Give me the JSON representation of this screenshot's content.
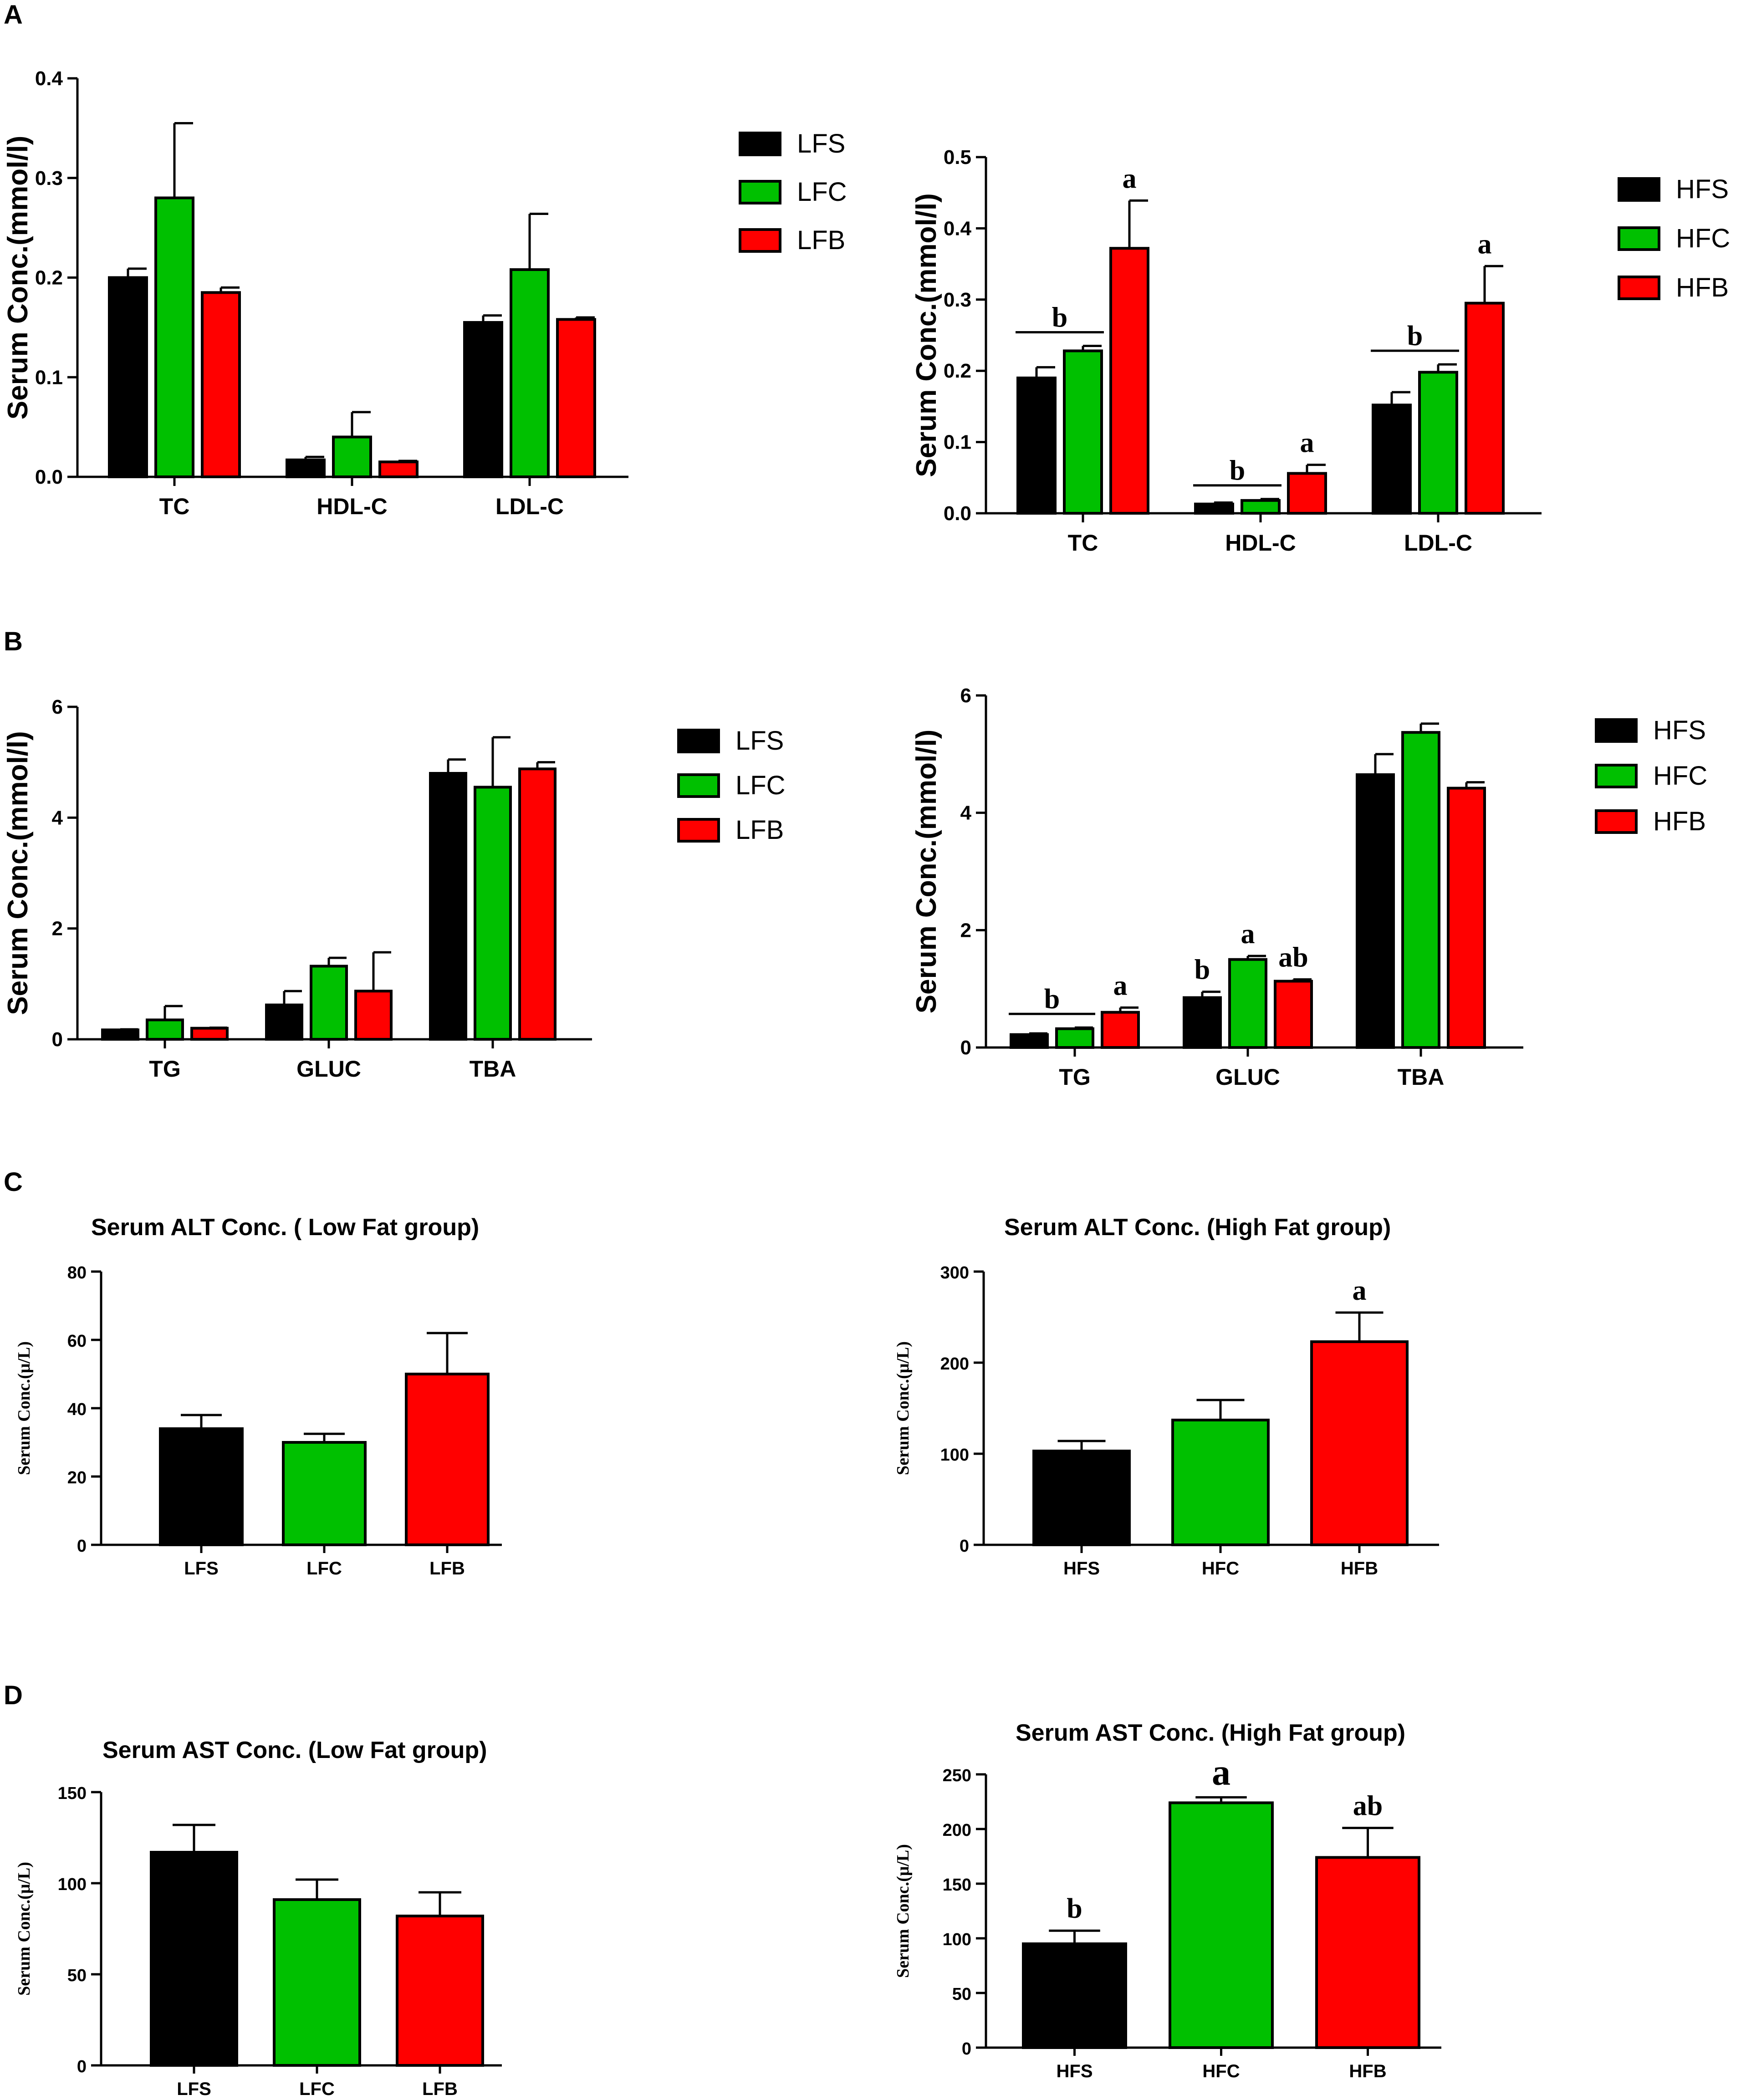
{
  "colors": {
    "black": "#000000",
    "green": "#00c000",
    "red": "#ff0000"
  },
  "panel_labels": [
    "A",
    "B",
    "C",
    "D"
  ],
  "chart_data": [
    {
      "id": "A-left",
      "panel": "A",
      "type": "bar",
      "title": "",
      "ylabel": "Serum  Conc.(mmol/l)",
      "xlabel": "",
      "ylim": [
        0,
        0.4
      ],
      "yticks": [
        "0.0",
        "0.1",
        "0.2",
        "0.3",
        "0.4"
      ],
      "categories": [
        "TC",
        "HDL-C",
        "LDL-C"
      ],
      "series": [
        {
          "name": "LFS",
          "color": "#000000",
          "values": [
            0.2,
            0.017,
            0.155
          ],
          "errors": [
            0.009,
            0.003,
            0.007
          ]
        },
        {
          "name": "LFC",
          "color": "#00c000",
          "values": [
            0.28,
            0.04,
            0.208
          ],
          "errors": [
            0.075,
            0.025,
            0.056
          ]
        },
        {
          "name": "LFB",
          "color": "#ff0000",
          "values": [
            0.185,
            0.015,
            0.158
          ],
          "errors": [
            0.005,
            0.001,
            0.002
          ]
        }
      ],
      "letters": [],
      "legend": [
        "LFS",
        "LFC",
        "LFB"
      ],
      "legend_position": "right"
    },
    {
      "id": "A-right",
      "panel": "A",
      "type": "bar",
      "title": "",
      "ylabel": "Serum  Conc.(mmol/l)",
      "xlabel": "",
      "ylim": [
        0,
        0.5
      ],
      "yticks": [
        "0.0",
        "0.1",
        "0.2",
        "0.3",
        "0.4",
        "0.5"
      ],
      "categories": [
        "TC",
        "HDL-C",
        "LDL-C"
      ],
      "series": [
        {
          "name": "HFS",
          "color": "#000000",
          "values": [
            0.19,
            0.013,
            0.152
          ],
          "errors": [
            0.015,
            0.002,
            0.018
          ]
        },
        {
          "name": "HFC",
          "color": "#00c000",
          "values": [
            0.228,
            0.018,
            0.198
          ],
          "errors": [
            0.007,
            0.002,
            0.011
          ]
        },
        {
          "name": "HFB",
          "color": "#ff0000",
          "values": [
            0.372,
            0.056,
            0.295
          ],
          "errors": [
            0.067,
            0.012,
            0.052
          ]
        }
      ],
      "letters": [
        {
          "text": "b",
          "category": 0,
          "span": [
            0,
            1
          ],
          "line": true
        },
        {
          "text": "a",
          "category": 0,
          "bar": 2
        },
        {
          "text": "b",
          "category": 1,
          "span": [
            0,
            1
          ],
          "line": true
        },
        {
          "text": "a",
          "category": 1,
          "bar": 2
        },
        {
          "text": "b",
          "category": 2,
          "span": [
            0,
            1
          ],
          "line": true
        },
        {
          "text": "a",
          "category": 2,
          "bar": 2
        }
      ],
      "legend": [
        "HFS",
        "HFC",
        "HFB"
      ],
      "legend_position": "right"
    },
    {
      "id": "B-left",
      "panel": "B",
      "type": "bar",
      "title": "",
      "ylabel": "Serum  Conc.(mmol/l)",
      "xlabel": "",
      "ylim": [
        0,
        6
      ],
      "yticks": [
        "0",
        "2",
        "4",
        "6"
      ],
      "categories": [
        "TG",
        "GLUC",
        "TBA"
      ],
      "series": [
        {
          "name": "LFS",
          "color": "#000000",
          "values": [
            0.17,
            0.62,
            4.8
          ],
          "errors": [
            0.01,
            0.25,
            0.25
          ]
        },
        {
          "name": "LFC",
          "color": "#00c000",
          "values": [
            0.35,
            1.32,
            4.55
          ],
          "errors": [
            0.25,
            0.15,
            0.9
          ]
        },
        {
          "name": "LFB",
          "color": "#ff0000",
          "values": [
            0.2,
            0.87,
            4.88
          ],
          "errors": [
            0.01,
            0.7,
            0.12
          ]
        }
      ],
      "letters": [],
      "legend": [
        "LFS",
        "LFC",
        "LFB"
      ],
      "legend_position": "right"
    },
    {
      "id": "B-right",
      "panel": "B",
      "type": "bar",
      "title": "",
      "ylabel": "Serum  Conc.(mmol/l)",
      "xlabel": "",
      "ylim": [
        0,
        6
      ],
      "yticks": [
        "0",
        "2",
        "4",
        "6"
      ],
      "categories": [
        "TG",
        "GLUC",
        "TBA"
      ],
      "series": [
        {
          "name": "HFS",
          "color": "#000000",
          "values": [
            0.22,
            0.85,
            4.65
          ],
          "errors": [
            0.02,
            0.1,
            0.35
          ]
        },
        {
          "name": "HFC",
          "color": "#00c000",
          "values": [
            0.32,
            1.5,
            5.37
          ],
          "errors": [
            0.02,
            0.06,
            0.15
          ]
        },
        {
          "name": "HFB",
          "color": "#ff0000",
          "values": [
            0.6,
            1.13,
            4.42
          ],
          "errors": [
            0.08,
            0.03,
            0.1
          ]
        }
      ],
      "letters": [
        {
          "text": "b",
          "category": 0,
          "span": [
            0,
            1
          ],
          "line": true
        },
        {
          "text": "a",
          "category": 0,
          "bar": 2
        },
        {
          "text": "b",
          "category": 1,
          "bar": 0
        },
        {
          "text": "a",
          "category": 1,
          "bar": 1
        },
        {
          "text": "ab",
          "category": 1,
          "bar": 2
        }
      ],
      "legend": [
        "HFS",
        "HFC",
        "HFB"
      ],
      "legend_position": "right"
    },
    {
      "id": "C-left",
      "panel": "C",
      "type": "bar",
      "title": "Serum ALT  Conc. ( Low Fat group)",
      "ylabel": "Serum Conc.(μ/L)",
      "xlabel": "",
      "ylim": [
        0,
        80
      ],
      "yticks": [
        "0",
        "20",
        "40",
        "60",
        "80"
      ],
      "categories": [
        "LFS",
        "LFC",
        "LFB"
      ],
      "values": [
        34,
        30,
        50
      ],
      "errors": [
        4,
        2.5,
        12
      ],
      "colors": [
        "#000000",
        "#00c000",
        "#ff0000"
      ],
      "letters": []
    },
    {
      "id": "C-right",
      "panel": "C",
      "type": "bar",
      "title": "Serum ALT Conc. (High Fat group)",
      "ylabel": "Serum Conc.(μ/L)",
      "xlabel": "",
      "ylim": [
        0,
        300
      ],
      "yticks": [
        "0",
        "100",
        "200",
        "300"
      ],
      "categories": [
        "HFS",
        "HFC",
        "HFB"
      ],
      "values": [
        103,
        137,
        223
      ],
      "errors": [
        11,
        22,
        32
      ],
      "colors": [
        "#000000",
        "#00c000",
        "#ff0000"
      ],
      "letters": [
        {
          "text": "a",
          "bar": 2
        }
      ]
    },
    {
      "id": "D-left",
      "panel": "D",
      "type": "bar",
      "title": "Serum AST Conc. (Low Fat group)",
      "ylabel": "Serum Conc.(μ/L)",
      "xlabel": "",
      "ylim": [
        0,
        150
      ],
      "yticks": [
        "0",
        "50",
        "100",
        "150"
      ],
      "categories": [
        "LFS",
        "LFC",
        "LFB"
      ],
      "values": [
        117,
        91,
        82
      ],
      "errors": [
        15,
        11,
        13
      ],
      "colors": [
        "#000000",
        "#00c000",
        "#ff0000"
      ],
      "letters": []
    },
    {
      "id": "D-right",
      "panel": "D",
      "type": "bar",
      "title": "Serum AST Conc. (High  Fat group)",
      "ylabel": "Serum Conc.(μ/L)",
      "xlabel": "",
      "ylim": [
        0,
        250
      ],
      "yticks": [
        "0",
        "50",
        "100",
        "150",
        "200",
        "250"
      ],
      "categories": [
        "HFS",
        "HFC",
        "HFB"
      ],
      "values": [
        95,
        224,
        174
      ],
      "errors": [
        12,
        5,
        27
      ],
      "colors": [
        "#000000",
        "#00c000",
        "#ff0000"
      ],
      "letters": [
        {
          "text": "b",
          "bar": 0
        },
        {
          "text": "a",
          "bar": 1,
          "big": true
        },
        {
          "text": "ab",
          "bar": 2
        }
      ]
    }
  ]
}
